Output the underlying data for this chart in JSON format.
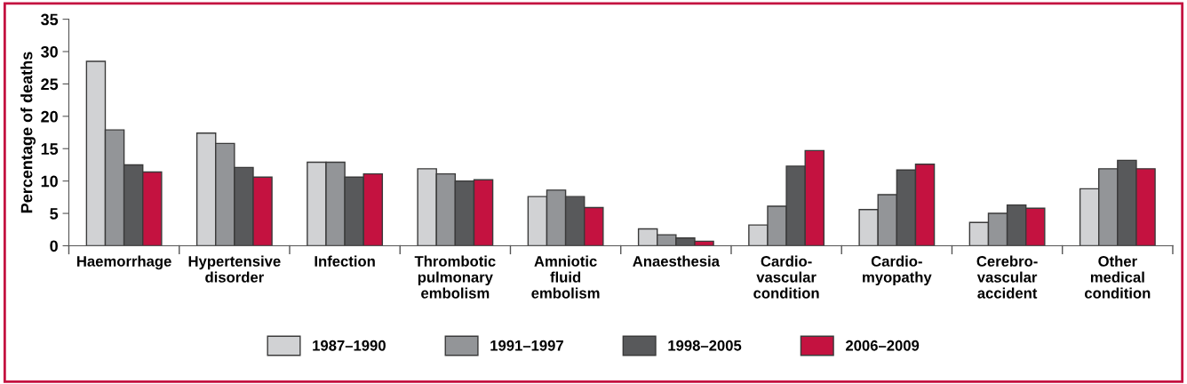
{
  "chart_data": {
    "type": "bar",
    "ylabel": "Percentage of deaths",
    "categories": [
      "Haemorrhage",
      "Hypertensive\ndisorder",
      "Infection",
      "Thrombotic\npulmonary\nembolism",
      "Amniotic\nfluid\nembolism",
      "Anaesthesia",
      "Cardio-\nvascular\ncondition",
      "Cardio-\nmyopathy",
      "Cerebro-\nvascular\naccident",
      "Other\nmedical\ncondition"
    ],
    "series": [
      {
        "name": "1987–1990",
        "color": "#d1d2d4",
        "values": [
          28.5,
          17.4,
          12.9,
          11.9,
          7.6,
          2.6,
          3.2,
          5.6,
          3.6,
          8.8
        ]
      },
      {
        "name": "1991–1997",
        "color": "#939598",
        "values": [
          17.9,
          15.8,
          12.9,
          11.1,
          8.6,
          1.7,
          6.1,
          7.9,
          5.0,
          11.9
        ]
      },
      {
        "name": "1998–2005",
        "color": "#58595b",
        "values": [
          12.5,
          12.1,
          10.6,
          10.0,
          7.6,
          1.2,
          12.3,
          11.7,
          6.3,
          13.2
        ]
      },
      {
        "name": "2006–2009",
        "color": "#c41240",
        "values": [
          11.4,
          10.6,
          11.1,
          10.2,
          5.9,
          0.7,
          14.7,
          12.6,
          5.8,
          11.9
        ]
      }
    ],
    "ylim": [
      0,
      35
    ],
    "yticks": [
      0,
      5,
      10,
      15,
      20,
      25,
      30,
      35
    ],
    "grid": false,
    "legend": "bottom"
  }
}
